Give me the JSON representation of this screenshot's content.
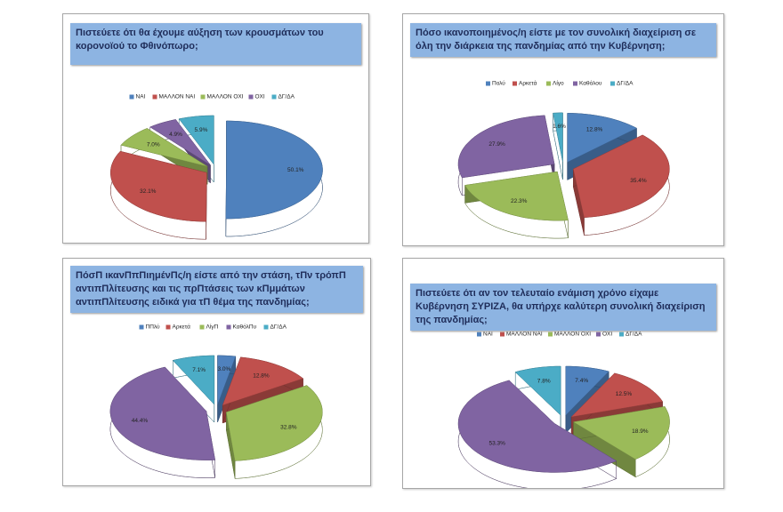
{
  "chart_data": [
    {
      "type": "pie",
      "title": "Πιστεύετε ότι θα έχουμε αύξηση των κρουσμάτων του κορονοϊού το Φθινόπωρο;",
      "categories": [
        "ΝΑΙ",
        "ΜΑΛΛΟΝ ΝΑΙ",
        "ΜΑΛΛΟΝ ΟΧΙ",
        "ΟΧΙ",
        "ΔΓ/ΔΑ"
      ],
      "values": [
        50.1,
        32.1,
        7.0,
        4.9,
        5.9
      ],
      "value_labels": [
        "50.1%",
        "32.1%",
        "7.0%",
        "4.9%",
        "5.9%"
      ],
      "colors": [
        "#4f81bd",
        "#c0504d",
        "#9bbb59",
        "#8064a2",
        "#4bacc6"
      ],
      "legend": "top"
    },
    {
      "type": "pie",
      "title": "Πόσο ικανοποιημένος/η είστε με τον συνολική διαχείριση σε όλη την διάρκεια της πανδημίας από την Κυβέρνηση;",
      "categories": [
        "Πολύ",
        "Αρκετά",
        "Λίγο",
        "Καθόλου",
        "ΔΓ/ΔΑ"
      ],
      "values": [
        12.8,
        35.4,
        22.3,
        27.9,
        1.6
      ],
      "value_labels": [
        "12.8%",
        "35.4%",
        "22.3%",
        "27.9%",
        "1.6%"
      ],
      "colors": [
        "#4f81bd",
        "#c0504d",
        "#9bbb59",
        "#8064a2",
        "#4bacc6"
      ],
      "legend": "top"
    },
    {
      "type": "pie",
      "title": "ΠόσΠ ικανΠπΠιημένΠς/η είστε από την στάση, τΠν τρόπΠ αντιπΠλίτευσης και τις πρΠτάσεις των κΠμμάτων αντιπΠλίτευσης ειδικά για τΠ θέμα της πανδημίας;",
      "categories": [
        "ΠΠλύ",
        "Αρκετά",
        "ΛίγΠ",
        "ΚαθόλΠυ",
        "ΔΓ/ΔΑ"
      ],
      "values": [
        3.0,
        12.8,
        32.8,
        44.4,
        7.1
      ],
      "value_labels": [
        "3.0%",
        "12.8%",
        "32.8%",
        "44.4%",
        "7.1%"
      ],
      "colors": [
        "#4f81bd",
        "#c0504d",
        "#9bbb59",
        "#8064a2",
        "#4bacc6"
      ],
      "legend": "top"
    },
    {
      "type": "pie",
      "title": "Πιστεύετε ότι αν τον τελευταίο ενάμιση χρόνο είχαμε Κυβέρνηση ΣΥΡΙΖΑ, θα υπήρχε καλύτερη συνολική διαχείριση της πανδημίας;",
      "categories": [
        "ΝΑΙ",
        "ΜΑΛΛΟΝ ΝΑΙ",
        "ΜΑΛΛΟΝ ΟΧΙ",
        "ΟΧΙ",
        "ΔΓ/ΔΑ"
      ],
      "values": [
        7.4,
        12.5,
        18.9,
        53.3,
        7.8
      ],
      "value_labels": [
        "7.4%",
        "12.5%",
        "18.9%",
        "53.3%",
        "7.8%"
      ],
      "colors": [
        "#4f81bd",
        "#c0504d",
        "#9bbb59",
        "#8064a2",
        "#4bacc6"
      ],
      "legend": "top"
    }
  ]
}
